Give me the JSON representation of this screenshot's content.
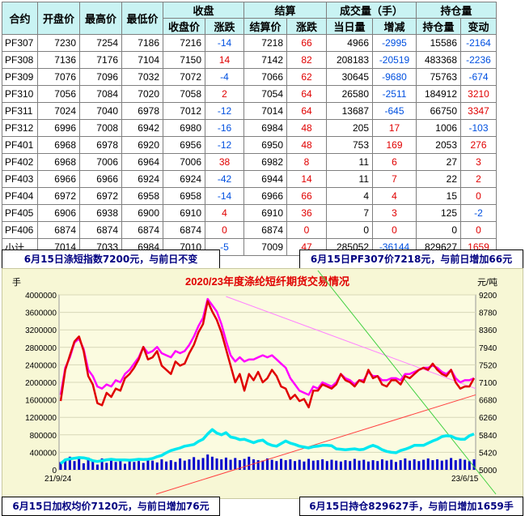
{
  "table": {
    "group_headers": {
      "close": "收盘",
      "settle": "结算",
      "volume": "成交量（手）",
      "oi": "持仓量"
    },
    "columns": [
      "合约",
      "开盘价",
      "最高价",
      "最低价",
      "收盘价",
      "涨跌",
      "结算价",
      "涨跌",
      "当日量",
      "增减",
      "持仓量",
      "变动"
    ],
    "rows": [
      {
        "contract": "PF307",
        "open": "7230",
        "high": "7254",
        "low": "7186",
        "close": "7216",
        "close_chg": "-14",
        "settle": "7218",
        "settle_chg": "66",
        "vol": "4966",
        "vol_chg": "-2995",
        "oi": "15586",
        "oi_chg": "-2164"
      },
      {
        "contract": "PF308",
        "open": "7136",
        "high": "7176",
        "low": "7104",
        "close": "7150",
        "close_chg": "14",
        "settle": "7142",
        "settle_chg": "82",
        "vol": "208183",
        "vol_chg": "-20519",
        "oi": "483368",
        "oi_chg": "-2236"
      },
      {
        "contract": "PF309",
        "open": "7076",
        "high": "7096",
        "low": "7032",
        "close": "7072",
        "close_chg": "-4",
        "settle": "7066",
        "settle_chg": "62",
        "vol": "30645",
        "vol_chg": "-9680",
        "oi": "75763",
        "oi_chg": "-674"
      },
      {
        "contract": "PF310",
        "open": "7056",
        "high": "7084",
        "low": "7020",
        "close": "7058",
        "close_chg": "2",
        "settle": "7054",
        "settle_chg": "64",
        "vol": "26580",
        "vol_chg": "-2511",
        "oi": "184912",
        "oi_chg": "3210"
      },
      {
        "contract": "PF311",
        "open": "7024",
        "high": "7040",
        "low": "6978",
        "close": "7012",
        "close_chg": "-12",
        "settle": "7014",
        "settle_chg": "64",
        "vol": "13687",
        "vol_chg": "-645",
        "oi": "66750",
        "oi_chg": "3347"
      },
      {
        "contract": "PF312",
        "open": "6996",
        "high": "7008",
        "low": "6942",
        "close": "6980",
        "close_chg": "-16",
        "settle": "6984",
        "settle_chg": "48",
        "vol": "205",
        "vol_chg": "17",
        "oi": "1006",
        "oi_chg": "-103"
      },
      {
        "contract": "PF401",
        "open": "6968",
        "high": "6978",
        "low": "6920",
        "close": "6956",
        "close_chg": "-12",
        "settle": "6950",
        "settle_chg": "48",
        "vol": "753",
        "vol_chg": "169",
        "oi": "2053",
        "oi_chg": "276"
      },
      {
        "contract": "PF402",
        "open": "6968",
        "high": "7006",
        "low": "6964",
        "close": "7006",
        "close_chg": "38",
        "settle": "6982",
        "settle_chg": "8",
        "vol": "11",
        "vol_chg": "6",
        "oi": "27",
        "oi_chg": "3"
      },
      {
        "contract": "PF403",
        "open": "6966",
        "high": "6966",
        "low": "6924",
        "close": "6924",
        "close_chg": "-42",
        "settle": "6944",
        "settle_chg": "14",
        "vol": "11",
        "vol_chg": "7",
        "oi": "22",
        "oi_chg": "2"
      },
      {
        "contract": "PF404",
        "open": "6972",
        "high": "6972",
        "low": "6958",
        "close": "6958",
        "close_chg": "-14",
        "settle": "6966",
        "settle_chg": "66",
        "vol": "4",
        "vol_chg": "4",
        "oi": "15",
        "oi_chg": "0"
      },
      {
        "contract": "PF405",
        "open": "6906",
        "high": "6938",
        "low": "6900",
        "close": "6910",
        "close_chg": "4",
        "settle": "6910",
        "settle_chg": "36",
        "vol": "7",
        "vol_chg": "3",
        "oi": "125",
        "oi_chg": "-2"
      },
      {
        "contract": "PF406",
        "open": "6874",
        "high": "6874",
        "low": "6874",
        "close": "6874",
        "close_chg": "0",
        "settle": "6874",
        "settle_chg": "0",
        "vol": "0",
        "vol_chg": "0",
        "oi": "0",
        "oi_chg": "0"
      },
      {
        "contract": "小计",
        "open": "7014",
        "high": "7033",
        "low": "6984",
        "close": "7010",
        "close_chg": "-5",
        "settle": "7009",
        "settle_chg": "47",
        "vol": "285052",
        "vol_chg": "-36144",
        "oi": "829627",
        "oi_chg": "1659"
      }
    ]
  },
  "banners": {
    "top_left": "6月15日涤短指数7200元，与前日不变",
    "top_right": "6月15日PF307价7218元，与前日增加66元",
    "bottom_left": "6月15日加权均价7120元，与前日增加76元",
    "bottom_right": "6月15日持仓829627手，与前日增加1659手"
  },
  "chart_data": {
    "type": "line",
    "title": "2020/23年度涤纶短纤期货交易情况",
    "left_axis_unit": "手",
    "right_axis_unit": "元/吨",
    "left_ticks": [
      "4000000",
      "3600000",
      "3200000",
      "2800000",
      "2400000",
      "2000000",
      "1600000",
      "1200000",
      "800000",
      "400000",
      "0"
    ],
    "right_ticks": [
      "9200",
      "8780",
      "8360",
      "7940",
      "7520",
      "7100",
      "6680",
      "6260",
      "5840",
      "5420",
      "5000"
    ],
    "left_ylim": [
      0,
      4000000
    ],
    "right_ylim": [
      5000,
      9200
    ],
    "x_start_label": "21/9/24",
    "x_end_label": "23/6/15",
    "colors": {
      "price": "#e00000",
      "settle": "#ff00ff",
      "oi": "#00e8f0",
      "volume": "#0000cc"
    },
    "series": [
      {
        "role": "price",
        "unit": "元/吨",
        "values": [
          6650,
          7400,
          7750,
          8080,
          8200,
          7850,
          7250,
          7050,
          6600,
          6550,
          6850,
          6750,
          6950,
          6900,
          7200,
          7300,
          7450,
          7650,
          7950,
          7650,
          7700,
          7850,
          7500,
          7400,
          7300,
          7600,
          7500,
          7550,
          7800,
          8000,
          8300,
          8500,
          9050,
          8800,
          8600,
          8300,
          7900,
          7500,
          7100,
          7300,
          6900,
          7300,
          7150,
          7350,
          7100,
          7200,
          7400,
          7250,
          7000,
          6950,
          6700,
          6800,
          6650,
          6700,
          6500,
          6900,
          6900,
          7050,
          7000,
          6950,
          7050,
          7300,
          7150,
          7100,
          7000,
          7150,
          7100,
          7400,
          7200,
          7250,
          7050,
          7000,
          7150,
          7150,
          7050,
          7250,
          7200,
          7300,
          7400,
          7450,
          7400,
          7550,
          7400,
          7300,
          7250,
          7400,
          7100,
          6950,
          7000,
          7000,
          7200
        ]
      },
      {
        "role": "settle",
        "unit": "元/吨",
        "values": [
          6800,
          7450,
          7700,
          8050,
          8150,
          7900,
          7400,
          7250,
          7000,
          6950,
          7050,
          7000,
          7150,
          7100,
          7300,
          7400,
          7550,
          7700,
          7950,
          7800,
          7850,
          7950,
          7800,
          7750,
          7700,
          7850,
          7800,
          7850,
          8000,
          8200,
          8450,
          8650,
          9100,
          8950,
          8800,
          8500,
          8100,
          7750,
          7600,
          7700,
          7600,
          7650,
          7650,
          7700,
          7750,
          7700,
          7750,
          7650,
          7550,
          7450,
          7200,
          7050,
          6900,
          6850,
          6800,
          7000,
          6950,
          7100,
          7050,
          7000,
          7100,
          7300,
          7200,
          7150,
          7050,
          7150,
          7150,
          7350,
          7250,
          7250,
          7150,
          7150,
          7200,
          7200,
          7150,
          7300,
          7300,
          7350,
          7400,
          7450,
          7450,
          7500,
          7450,
          7350,
          7300,
          7400,
          7200,
          7100,
          7150,
          7150,
          7200
        ]
      },
      {
        "role": "open_interest",
        "unit": "手",
        "values": [
          140000,
          230000,
          250000,
          265000,
          280000,
          275000,
          250000,
          210000,
          190000,
          210000,
          230000,
          240000,
          230000,
          225000,
          225000,
          220000,
          230000,
          240000,
          235000,
          240000,
          260000,
          300000,
          330000,
          390000,
          440000,
          470000,
          500000,
          540000,
          560000,
          580000,
          650000,
          700000,
          820000,
          920000,
          840000,
          800000,
          850000,
          750000,
          730000,
          690000,
          700000,
          660000,
          620000,
          660000,
          680000,
          600000,
          560000,
          540000,
          600000,
          660000,
          610000,
          580000,
          540000,
          520000,
          500000,
          530000,
          540000,
          560000,
          560000,
          550000,
          480000,
          470000,
          460000,
          470000,
          480000,
          460000,
          470000,
          520000,
          560000,
          520000,
          460000,
          420000,
          400000,
          390000,
          440000,
          470000,
          510000,
          560000,
          560000,
          560000,
          610000,
          660000,
          700000,
          760000,
          780000,
          770000,
          720000,
          700000,
          700000,
          780000,
          820000
        ]
      },
      {
        "role": "volume",
        "unit": "手",
        "values": [
          180000,
          220000,
          300000,
          200000,
          250000,
          150000,
          280000,
          200000,
          120000,
          260000,
          160000,
          230000,
          180000,
          210000,
          140000,
          250000,
          180000,
          200000,
          160000,
          230000,
          210000,
          170000,
          240000,
          190000,
          220000,
          180000,
          260000,
          210000,
          240000,
          290000,
          230000,
          270000,
          350000,
          300000,
          260000,
          240000,
          280000,
          230000,
          270000,
          220000,
          250000,
          300000,
          240000,
          220000,
          210000,
          260000,
          230000,
          200000,
          250000,
          220000,
          240000,
          200000,
          230000,
          190000,
          250000,
          210000,
          220000,
          240000,
          200000,
          230000,
          210000,
          190000,
          220000,
          200000,
          250000,
          210000,
          230000,
          190000,
          220000,
          200000,
          240000,
          210000,
          230000,
          180000,
          220000,
          260000,
          210000,
          240000,
          200000,
          230000,
          260000,
          220000,
          240000,
          210000,
          230000,
          270000,
          220000,
          250000,
          230000,
          200000,
          240000
        ]
      }
    ],
    "trend_lines": [
      "pink declining trend",
      "red rising trend",
      "green diagonal"
    ]
  }
}
